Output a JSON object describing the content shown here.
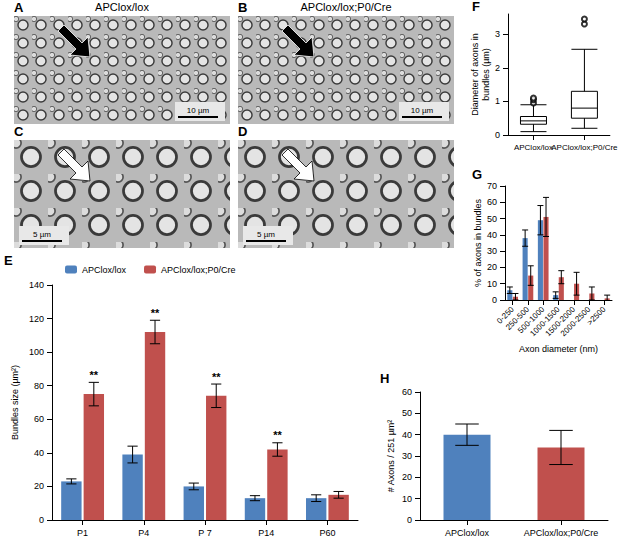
{
  "figure": {
    "columns": [
      "APClox/lox",
      "APClox/lox;P0/Cre"
    ],
    "micrographs": [
      {
        "panel": "A",
        "scale_bar": "10 µm"
      },
      {
        "panel": "B",
        "scale_bar": "10 µm"
      },
      {
        "panel": "C",
        "scale_bar": "5 µm"
      },
      {
        "panel": "D",
        "scale_bar": "5 µm"
      }
    ]
  },
  "chart_data": [
    {
      "panel": "E",
      "type": "bar",
      "categories": [
        "P1",
        "P4",
        "P 7",
        "P14",
        "P60"
      ],
      "ylabel": "Bundles size (µm²)",
      "ylim": [
        0,
        140
      ],
      "yticks": [
        0,
        20,
        40,
        60,
        80,
        100,
        120,
        140
      ],
      "grid": false,
      "legend": "top",
      "series": [
        {
          "name": "APClox/lox",
          "color": "#4f81bd",
          "values": [
            23,
            39,
            20,
            13,
            13
          ],
          "errors": [
            1.5,
            5,
            2,
            1.5,
            2
          ]
        },
        {
          "name": "APClox/lox;P0/Cre",
          "color": "#c0504d",
          "values": [
            75,
            112,
            74,
            42,
            15
          ],
          "errors": [
            7,
            7,
            7,
            4,
            2
          ],
          "annotations": [
            "**",
            "**",
            "**",
            "**",
            null
          ]
        }
      ]
    },
    {
      "panel": "F",
      "type": "boxplot",
      "categories": [
        "APClox/lox",
        "APClox/lox;P0/Cre"
      ],
      "ylabel": "Diameter of axons in bundles (µm)",
      "ylim": [
        0,
        3.6
      ],
      "yticks": [
        0,
        1,
        2,
        3
      ],
      "grid": false,
      "boxes": [
        {
          "min": 0.1,
          "q1": 0.32,
          "median": 0.42,
          "q3": 0.55,
          "max": 0.9
        },
        {
          "min": 0.2,
          "q1": 0.5,
          "median": 0.8,
          "q3": 1.3,
          "max": 2.55
        }
      ],
      "outliers": [
        [
          0.95,
          1.05,
          1.1
        ],
        [
          3.3,
          3.45
        ]
      ]
    },
    {
      "panel": "G",
      "type": "bar",
      "categories": [
        "0-250",
        "250-500",
        "500-1000",
        "1000-1500",
        "1500-2000",
        "2000-2500",
        ">2500"
      ],
      "xlabel": "Axon diameter (nm)",
      "ylabel": "% of axons in bundles",
      "ylim": [
        0,
        70
      ],
      "yticks": [
        0,
        10,
        20,
        30,
        40,
        50,
        60,
        70
      ],
      "grid": false,
      "series": [
        {
          "color": "#4f81bd",
          "values": [
            6,
            38,
            49,
            3,
            0,
            0,
            0
          ],
          "errors": [
            2,
            5,
            9,
            2,
            0,
            0,
            0
          ]
        },
        {
          "color": "#c0504d",
          "values": [
            2,
            15,
            51,
            14,
            10,
            4,
            1
          ],
          "errors": [
            2,
            6,
            12,
            4,
            7,
            4,
            2
          ]
        }
      ]
    },
    {
      "panel": "H",
      "type": "bar",
      "categories": [
        "APClox/lox",
        "APClox/lox;P0/Cre"
      ],
      "ylabel": "# Axons / 251 µm²",
      "values": [
        40,
        34
      ],
      "errors": [
        5,
        8
      ],
      "colors": [
        "#4f81bd",
        "#c0504d"
      ],
      "ylim": [
        0,
        60
      ],
      "yticks": [
        0,
        10,
        20,
        30,
        40,
        50,
        60
      ],
      "grid": false
    }
  ]
}
